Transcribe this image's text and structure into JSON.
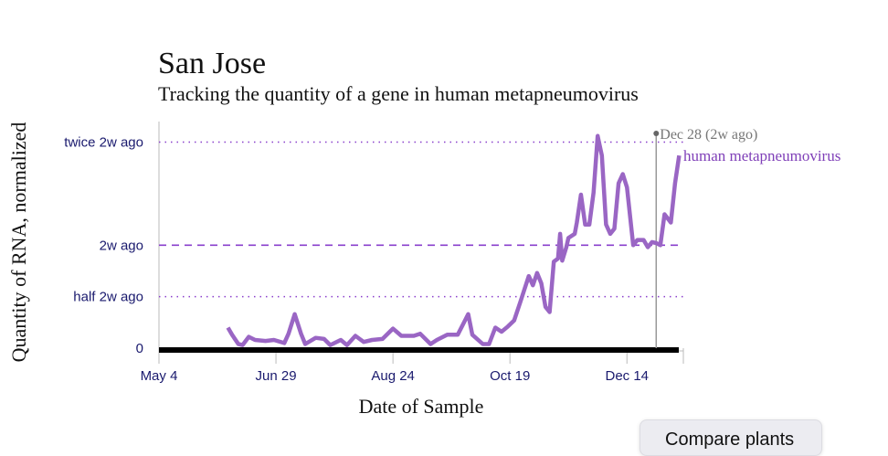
{
  "chart_data": {
    "type": "line",
    "title": "San Jose",
    "subtitle": "Tracking the quantity of a gene in human metapneumovirus",
    "xlabel": "Date of Sample",
    "ylabel": "Quantity of RNA, normalized",
    "x_ticks": [
      {
        "date": "2025-05-04",
        "label": "May 4"
      },
      {
        "date": "2025-06-29",
        "label": "Jun 29"
      },
      {
        "date": "2025-08-24",
        "label": "Aug 24"
      },
      {
        "date": "2025-10-19",
        "label": "Oct 19"
      },
      {
        "date": "2025-12-14",
        "label": "Dec 14"
      }
    ],
    "y_ticks": [
      {
        "value": 0,
        "label": "0"
      },
      {
        "value": 0.5,
        "label": "half 2w ago"
      },
      {
        "value": 1,
        "label": "2w ago"
      },
      {
        "value": 2,
        "label": "twice 2w ago"
      }
    ],
    "xlim": [
      "2025-05-04",
      "2026-01-10"
    ],
    "ylim": [
      0,
      2.2
    ],
    "grid": false,
    "reference_marker": {
      "date": "2025-12-28",
      "label": "Dec 28 (2w ago)"
    },
    "colors": {
      "series": "#9a66c4",
      "label": "#7f3fb8",
      "ref_line": "#8a3fcc",
      "ticks": "#1a1a6e",
      "marker": "#999999"
    },
    "series": [
      {
        "name": "human metapneumovirus",
        "x": [
          "2025-06-06",
          "2025-06-08",
          "2025-06-11",
          "2025-06-13",
          "2025-06-16",
          "2025-06-19",
          "2025-06-24",
          "2025-06-28",
          "2025-07-03",
          "2025-07-05",
          "2025-07-08",
          "2025-07-11",
          "2025-07-13",
          "2025-07-18",
          "2025-07-22",
          "2025-07-25",
          "2025-07-30",
          "2025-08-02",
          "2025-08-06",
          "2025-08-10",
          "2025-08-14",
          "2025-08-19",
          "2025-08-24",
          "2025-08-28",
          "2025-09-03",
          "2025-09-06",
          "2025-09-11",
          "2025-09-14",
          "2025-09-19",
          "2025-09-24",
          "2025-09-29",
          "2025-10-01",
          "2025-10-06",
          "2025-10-09",
          "2025-10-12",
          "2025-10-15",
          "2025-10-18",
          "2025-10-21",
          "2025-10-24",
          "2025-10-28",
          "2025-10-30",
          "2025-11-01",
          "2025-11-03",
          "2025-11-05",
          "2025-11-07",
          "2025-11-09",
          "2025-11-11",
          "2025-11-12",
          "2025-11-13",
          "2025-11-15",
          "2025-11-16",
          "2025-11-19",
          "2025-11-20",
          "2025-11-22",
          "2025-11-24",
          "2025-11-26",
          "2025-11-28",
          "2025-11-30",
          "2025-12-02",
          "2025-12-04",
          "2025-12-06",
          "2025-12-08",
          "2025-12-10",
          "2025-12-12",
          "2025-12-14",
          "2025-12-17",
          "2025-12-19",
          "2025-12-22",
          "2025-12-24",
          "2025-12-26",
          "2025-12-28",
          "2025-12-30",
          "2026-01-01",
          "2026-01-04",
          "2026-01-06",
          "2026-01-08"
        ],
        "values": [
          0.2,
          0.13,
          0.04,
          0.03,
          0.11,
          0.08,
          0.07,
          0.08,
          0.05,
          0.14,
          0.33,
          0.14,
          0.04,
          0.1,
          0.09,
          0.03,
          0.08,
          0.03,
          0.12,
          0.06,
          0.08,
          0.09,
          0.19,
          0.12,
          0.12,
          0.14,
          0.04,
          0.08,
          0.13,
          0.13,
          0.33,
          0.13,
          0.04,
          0.04,
          0.2,
          0.16,
          0.21,
          0.27,
          0.45,
          0.7,
          0.61,
          0.73,
          0.63,
          0.4,
          0.35,
          0.84,
          0.87,
          1.11,
          0.85,
          0.98,
          1.07,
          1.11,
          1.22,
          1.49,
          1.2,
          1.2,
          1.51,
          2.06,
          1.87,
          1.2,
          1.11,
          1.16,
          1.6,
          1.69,
          1.56,
          1.0,
          1.05,
          1.05,
          0.98,
          1.03,
          1.02,
          1.0,
          1.3,
          1.22,
          1.6,
          1.87
        ]
      }
    ]
  },
  "compare_button": {
    "label": "Compare plants"
  }
}
